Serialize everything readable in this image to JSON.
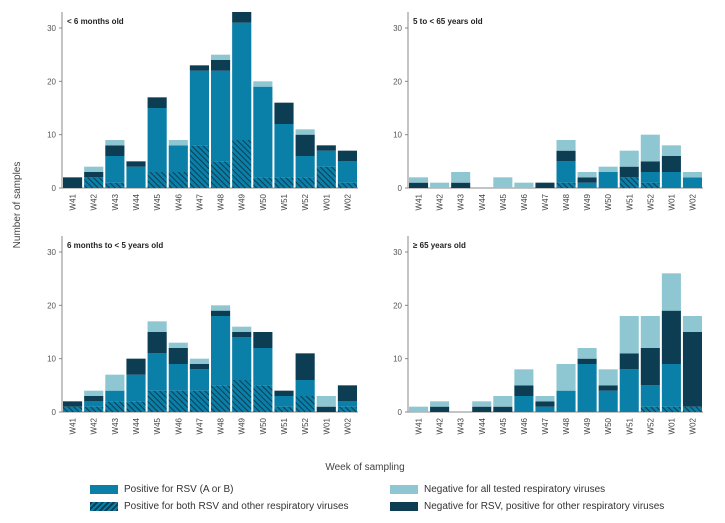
{
  "chart_data": {
    "type": "bar",
    "stacked": true,
    "y_axis_title": "Number of samples",
    "x_axis_title": "Week of sampling",
    "categories": [
      "W41",
      "W42",
      "W43",
      "W44",
      "W45",
      "W46",
      "W47",
      "W48",
      "W49",
      "W50",
      "W51",
      "W52",
      "W01",
      "W02"
    ],
    "series": [
      {
        "name": "Positive for both RSV and other respiratory viruses",
        "key": "both",
        "pattern": "hatched"
      },
      {
        "name": "Positive for RSV (A or B)",
        "key": "rsv"
      },
      {
        "name": "Negative for RSV, positive for other respiratory viruses",
        "key": "other"
      },
      {
        "name": "Negative for all tested respiratory viruses",
        "key": "neg"
      }
    ],
    "colors": {
      "rsv": "#0a7fa8",
      "other": "#0d3d53",
      "neg": "#8ec7d2",
      "hatch_line": "#0d3d53"
    },
    "panels": [
      {
        "title": "< 6 months old",
        "ylim": [
          0,
          33
        ],
        "yticks": [
          0,
          10,
          20,
          30
        ],
        "both": [
          0,
          2,
          1,
          0,
          3,
          3,
          8,
          5,
          9,
          2,
          2,
          2,
          4,
          1
        ],
        "rsv": [
          0,
          0,
          5,
          4,
          12,
          5,
          14,
          17,
          22,
          17,
          10,
          4,
          3,
          4
        ],
        "other": [
          2,
          1,
          2,
          1,
          2,
          0,
          1,
          2,
          2,
          0,
          4,
          4,
          1,
          2
        ],
        "neg": [
          0,
          1,
          1,
          0,
          0,
          1,
          0,
          1,
          0,
          1,
          0,
          1,
          0,
          0
        ]
      },
      {
        "title": "5 to < 65 years old",
        "ylim": [
          0,
          33
        ],
        "yticks": [
          0,
          10,
          20,
          30
        ],
        "both": [
          0,
          0,
          0,
          0,
          0,
          0,
          0,
          1,
          0,
          0,
          2,
          1,
          0,
          0
        ],
        "rsv": [
          0,
          0,
          0,
          0,
          0,
          0,
          0,
          4,
          1,
          3,
          0,
          2,
          3,
          2
        ],
        "other": [
          1,
          0,
          1,
          0,
          0,
          0,
          1,
          2,
          1,
          0,
          2,
          2,
          3,
          0
        ],
        "neg": [
          1,
          1,
          2,
          0,
          2,
          1,
          0,
          2,
          1,
          1,
          3,
          5,
          2,
          1
        ]
      },
      {
        "title": "6 months to < 5 years old",
        "ylim": [
          0,
          33
        ],
        "yticks": [
          0,
          10,
          20,
          30
        ],
        "both": [
          1,
          1,
          2,
          2,
          4,
          4,
          4,
          5,
          6,
          5,
          1,
          3,
          0,
          1
        ],
        "rsv": [
          0,
          1,
          2,
          5,
          7,
          5,
          4,
          13,
          8,
          7,
          2,
          3,
          0,
          1
        ],
        "other": [
          1,
          1,
          0,
          3,
          4,
          3,
          1,
          1,
          1,
          3,
          1,
          5,
          1,
          3
        ],
        "neg": [
          0,
          1,
          3,
          0,
          2,
          1,
          1,
          1,
          1,
          0,
          0,
          0,
          2,
          0
        ]
      },
      {
        "title": "≥ 65 years old",
        "ylim": [
          0,
          33
        ],
        "yticks": [
          0,
          10,
          20,
          30
        ],
        "both": [
          0,
          0,
          0,
          0,
          0,
          0,
          0,
          0,
          0,
          0,
          0,
          1,
          1,
          1
        ],
        "rsv": [
          0,
          0,
          0,
          0,
          0,
          3,
          1,
          4,
          9,
          4,
          8,
          4,
          8,
          0
        ],
        "other": [
          0,
          1,
          0,
          1,
          1,
          2,
          1,
          0,
          1,
          1,
          3,
          7,
          10,
          14
        ],
        "neg": [
          1,
          1,
          0,
          1,
          2,
          3,
          1,
          5,
          2,
          3,
          7,
          6,
          7,
          3
        ]
      }
    ]
  },
  "legend": {
    "rsv": "Positive for RSV (A or B)",
    "both": "Positive for both RSV and other respiratory viruses",
    "neg": "Negative for all tested respiratory viruses",
    "other": "Negative for RSV, positive for other respiratory viruses"
  }
}
